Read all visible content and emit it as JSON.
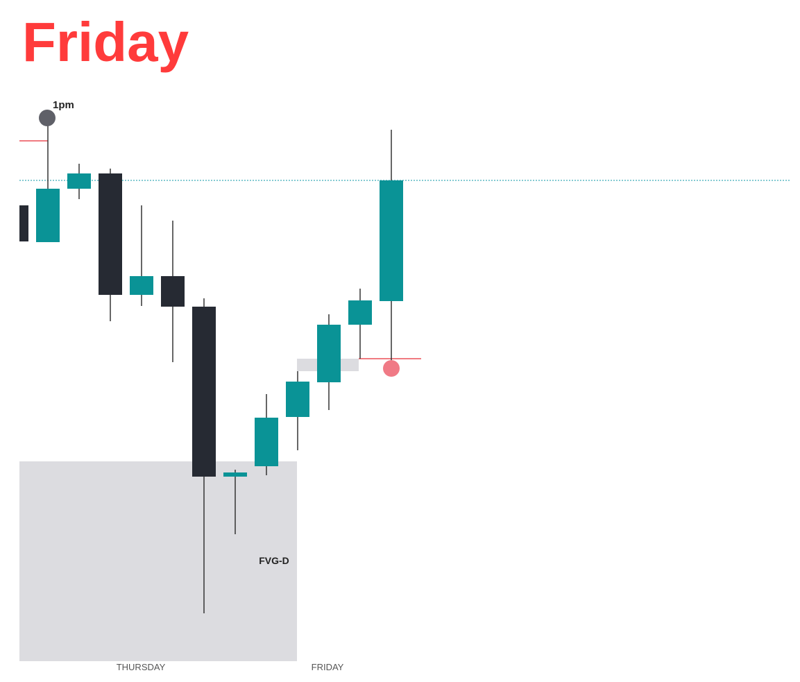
{
  "chart_data": {
    "type": "candlestick",
    "title": "Friday",
    "categories": [
      null,
      null,
      null,
      null,
      null,
      null,
      null,
      null,
      null,
      null,
      null,
      null,
      null
    ],
    "open": [
      664,
      611,
      688,
      710,
      535,
      562,
      518,
      273,
      288,
      359,
      409,
      492,
      526
    ],
    "high": [
      664,
      790,
      724,
      717,
      664,
      642,
      530,
      283,
      392,
      425,
      507,
      544,
      773
    ],
    "low": [
      612,
      611,
      673,
      497,
      519,
      438,
      76,
      190,
      275,
      311,
      369,
      443,
      429
    ],
    "close": [
      612,
      688,
      710,
      535,
      562,
      518,
      273,
      279,
      358,
      410,
      492,
      527,
      700
    ],
    "up_color": "#0a9396",
    "down_color": "#262a33",
    "ylim": [
      0,
      900
    ],
    "sessions": [
      "THURSDAY",
      "FRIDAY"
    ],
    "annotations": {
      "marker": "1pm",
      "zone": "FVG-D"
    },
    "zone": [
      7,
      295
    ],
    "gap": [
      425,
      443
    ],
    "level": 700,
    "red_lines": [
      757,
      443
    ]
  }
}
